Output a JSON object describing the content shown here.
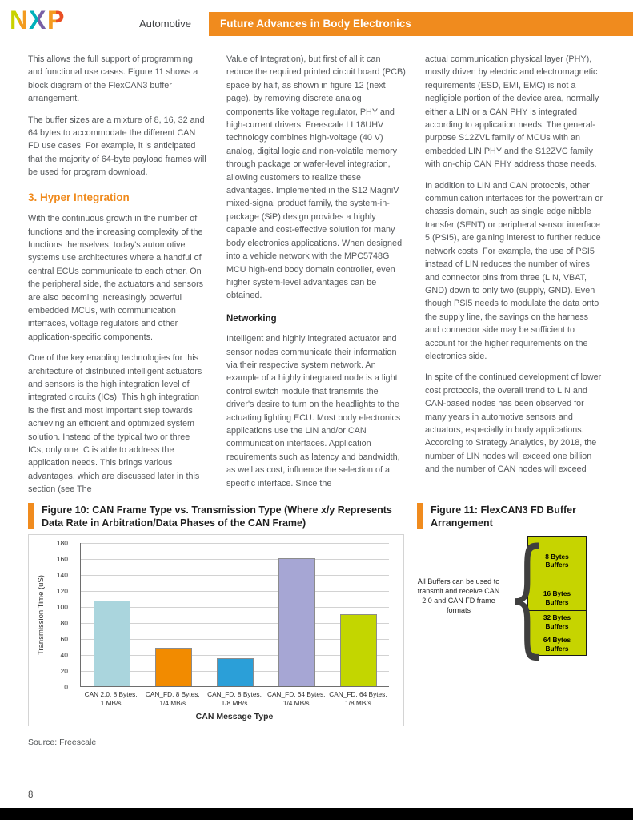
{
  "header": {
    "logo_letters": [
      "N",
      "X",
      "P"
    ],
    "section": "Automotive",
    "banner": "Future Advances in Body Electronics",
    "banner_color": "#f08b1e"
  },
  "columns": {
    "col1": {
      "p1": "This allows the full support of programming and functional use cases. Figure 11 shows a block diagram of the FlexCAN3 buffer arrangement.",
      "p2": "The buffer sizes are a mixture of 8, 16, 32 and 64 bytes to accommodate the different CAN FD use cases. For example, it is anticipated that the majority of 64-byte payload frames will be used for program download.",
      "heading": "3. Hyper Integration",
      "p3": "With the continuous growth in the number of functions and the increasing complexity of the functions themselves, today's automotive systems use architectures where a handful of central ECUs communicate to each other. On the peripheral side, the actuators and sensors are also becoming increasingly powerful embedded MCUs, with communication interfaces, voltage regulators and other application-specific components.",
      "p4": "One of the key enabling technologies for this architecture of distributed intelligent actuators and sensors is the high integration level of integrated circuits (ICs). This high integration is the first and most important step towards achieving an efficient and optimized system solution. Instead of the typical two or three ICs, only one IC is able to address the application needs. This brings various advantages, which are discussed later in this section (see The"
    },
    "col2": {
      "p1": "Value of Integration), but first of all it can reduce the required printed circuit board (PCB) space by half, as shown in figure 12 (next page), by removing discrete analog components like voltage regulator, PHY and high-current drivers. Freescale LL18UHV technology combines high-voltage (40 V) analog, digital logic and non-volatile memory through package or wafer-level integration, allowing customers to realize these advantages. Implemented in the S12 MagniV mixed-signal product family, the system-in-package (SiP) design provides a highly capable and cost-effective solution for many body electronics applications. When designed into a vehicle network with the MPC5748G MCU high-end body domain controller, even higher system-level advantages can be obtained.",
      "heading": "Networking",
      "p2": "Intelligent and highly integrated actuator and sensor nodes communicate their information via their respective system network. An example of a highly integrated node is a light control switch module that transmits the driver's desire to turn on the headlights to the actuating lighting ECU. Most body electronics applications use the LIN and/or CAN communication interfaces. Application requirements such as latency and bandwidth, as well as cost, influence the selection of a specific interface. Since the"
    },
    "col3": {
      "p1": "actual communication physical layer (PHY), mostly driven by electric and electromagnetic requirements (ESD, EMI, EMC) is not a negligible portion of the device area, normally either a LIN or a CAN PHY is integrated according to application needs. The general-purpose S12ZVL family of MCUs with an embedded LIN PHY and the S12ZVC family with on-chip CAN PHY address those needs.",
      "p2": "In addition to LIN and CAN protocols, other communication interfaces for the powertrain or chassis domain, such as single edge nibble transfer (SENT) or peripheral sensor interface 5 (PSI5), are gaining interest to further reduce network costs. For example, the use of PSI5 instead of LIN reduces the number of wires and connector pins from three (LIN, VBAT, GND) down to only two (supply, GND). Even though PSI5 needs to modulate the data onto the supply line, the savings on the harness and connector side may be sufficient to account for the higher requirements on the electronics side.",
      "p3": "In spite of the continued development of lower cost protocols, the overall trend to LIN and CAN-based nodes has been observed for many years in automotive sensors and actuators, especially in body applications. According to Strategy Analytics, by 2018, the number of LIN nodes will exceed one billion and the number of CAN nodes will exceed"
    }
  },
  "figure10": {
    "caption": "Figure 10: CAN Frame Type vs. Transmission Type (Where x/y Represents Data Rate in Arbitration/Data Phases of the CAN Frame)",
    "source": "Source: Freescale"
  },
  "chart_data": {
    "type": "bar",
    "categories": [
      "CAN 2.0, 8 Bytes,\n1 MB/s",
      "CAN_FD, 8 Bytes,\n1/4 MB/s",
      "CAN_FD, 8 Bytes,\n1/8 MB/s",
      "CAN_FD, 64 Bytes,\n1/4 MB/s",
      "CAN_FD, 64 Bytes,\n1/8 MB/s"
    ],
    "values": [
      107,
      48,
      35,
      160,
      90
    ],
    "colors": [
      "#aad5dd",
      "#f28b00",
      "#2b9fd8",
      "#a6a6d4",
      "#c3d600"
    ],
    "title": "",
    "xlabel": "CAN Message Type",
    "ylabel": "Transmission Time (uS)",
    "ylim": [
      0,
      180
    ],
    "ytick_step": 20,
    "grid": true,
    "legend": "none"
  },
  "figure11": {
    "caption": "Figure 11: FlexCAN3 FD Buffer Arrangement",
    "note": "All Buffers can be used to transmit and receive CAN 2.0 and CAN FD frame formats",
    "buffers": [
      "8 Bytes\nBuffers",
      "16 Bytes\nBuffers",
      "32 Bytes\nBuffers",
      "64 Bytes\nBuffers"
    ],
    "buffer_color": "#c6d400"
  },
  "footer": {
    "page_number": "8"
  }
}
